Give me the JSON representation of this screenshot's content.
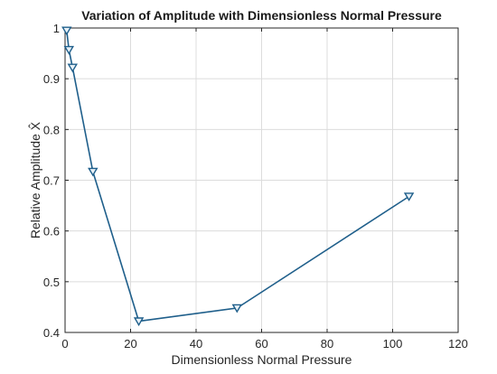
{
  "chart_data": {
    "type": "line",
    "title": "Variation of Amplitude with Dimensionless Normal Pressure",
    "xlabel": "Dimensionless Normal Pressure",
    "ylabel": "Relative Amplitude X̂",
    "xlim": [
      0,
      120
    ],
    "ylim": [
      0.4,
      1.0
    ],
    "xticks": [
      "0",
      "20",
      "40",
      "60",
      "80",
      "100",
      "120"
    ],
    "yticks": [
      "0.4",
      "0.5",
      "0.6",
      "0.7",
      "0.8",
      "0.9",
      "1"
    ],
    "grid": true,
    "marker": "downward-triangle",
    "line_color": "#1f5f8b",
    "series": [
      {
        "x": [
          0.5,
          1.2,
          2.3,
          8.5,
          22.5,
          52.5,
          105.0
        ],
        "y": [
          0.995,
          0.957,
          0.922,
          0.717,
          0.422,
          0.448,
          0.668
        ]
      }
    ]
  }
}
